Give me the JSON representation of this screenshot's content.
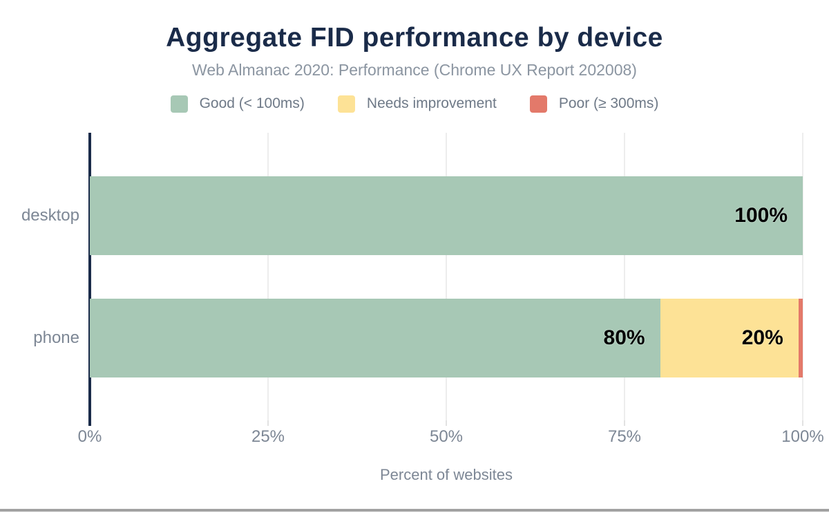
{
  "chart": {
    "title": "Aggregate FID performance by device",
    "subtitle": "Web Almanac 2020: Performance (Chrome UX Report 202008)",
    "xlabel": "Percent of websites"
  },
  "colors": {
    "title": "#1a2b49",
    "subtitle": "#8b95a1",
    "axis": "#1a2b49",
    "axis_label": "#7d8795",
    "legend_label": "#6e7987",
    "gridline": "#ededed",
    "minor_tick": "#e2e2e2",
    "bar_label": "#000000",
    "good": "#a7c8b5",
    "needs_improvement": "#fde296",
    "poor": "#e3796a"
  },
  "chart_data": {
    "type": "bar",
    "orientation": "horizontal",
    "stacked": true,
    "title": "Aggregate FID performance by device",
    "subtitle": "Web Almanac 2020: Performance (Chrome UX Report 202008)",
    "xlabel": "Percent of websites",
    "ylabel": "",
    "categories": [
      "desktop",
      "phone"
    ],
    "series": [
      {
        "name": "Good (< 100ms)",
        "color_key": "good",
        "values": [
          100,
          80
        ],
        "labels": [
          "100%",
          "80%"
        ]
      },
      {
        "name": "Needs improvement",
        "color_key": "needs_improvement",
        "values": [
          0,
          19.4
        ],
        "labels": [
          null,
          "20%"
        ]
      },
      {
        "name": "Poor (≥ 300ms)",
        "color_key": "poor",
        "values": [
          0,
          0.6
        ],
        "labels": [
          null,
          null
        ]
      }
    ],
    "xlim": [
      0,
      100
    ],
    "x_tick_values": [
      0,
      25,
      50,
      75,
      100
    ],
    "x_ticks": [
      "0%",
      "25%",
      "50%",
      "75%",
      "100%"
    ],
    "grid": true,
    "legend_position": "top"
  }
}
